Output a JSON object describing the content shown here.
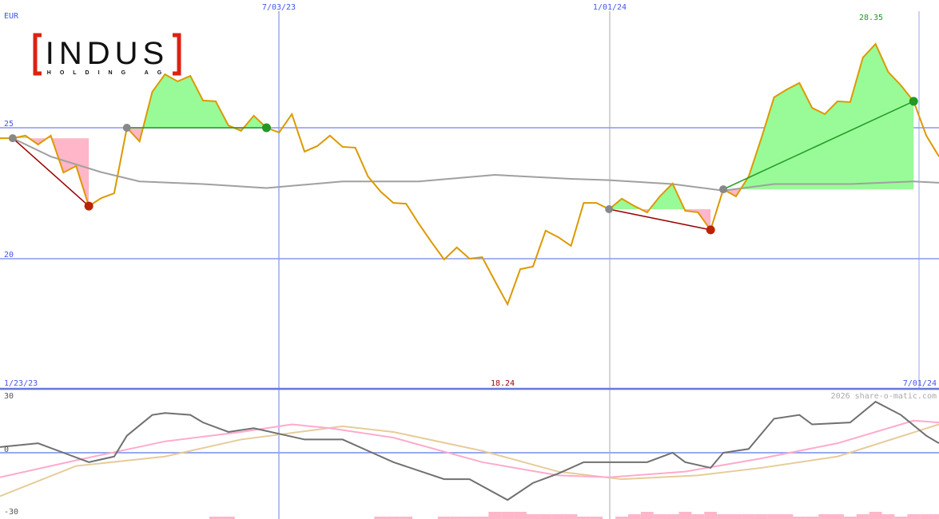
{
  "chart_data": [
    {
      "type": "line",
      "currency_label": "EUR",
      "x_tick_labels_top": [
        "7/03/23",
        "1/01/24"
      ],
      "x_tick_labels_bottom": [
        "1/23/23",
        "7/01/24"
      ],
      "y_ticks": [
        25,
        20
      ],
      "ylim": [
        16.2,
        29.9
      ],
      "max_label": "28.35",
      "min_label": "18.24",
      "grid": true,
      "frequency": "weekly",
      "values": [
        24.6,
        24.6,
        24.7,
        24.36,
        24.7,
        23.29,
        23.54,
        22.01,
        22.32,
        22.5,
        25.0,
        24.48,
        26.37,
        27.04,
        26.77,
        26.98,
        26.04,
        26.01,
        25.09,
        24.88,
        25.46,
        25.0,
        24.82,
        25.52,
        24.09,
        24.3,
        24.7,
        24.27,
        24.24,
        23.14,
        22.56,
        22.13,
        22.1,
        21.34,
        20.64,
        19.97,
        20.43,
        20.0,
        20.06,
        19.15,
        18.26,
        19.6,
        19.7,
        21.07,
        20.82,
        20.49,
        22.13,
        22.13,
        21.89,
        22.29,
        22.01,
        21.77,
        22.38,
        22.87,
        21.83,
        21.77,
        21.1,
        22.65,
        22.38,
        23.14,
        24.6,
        26.16,
        26.46,
        26.71,
        25.76,
        25.52,
        26.01,
        25.98,
        27.68,
        28.2,
        27.13,
        26.62,
        26.01,
        24.7,
        23.9
      ],
      "moving_average": [
        [
          1,
          24.6
        ],
        [
          4,
          23.9
        ],
        [
          8,
          23.3
        ],
        [
          11,
          22.95
        ],
        [
          16,
          22.85
        ],
        [
          21,
          22.7
        ],
        [
          27,
          22.95
        ],
        [
          33,
          22.95
        ],
        [
          39,
          23.2
        ],
        [
          45,
          23.05
        ],
        [
          48,
          23.0
        ],
        [
          53,
          22.85
        ],
        [
          57,
          22.6
        ],
        [
          61,
          22.85
        ],
        [
          67,
          22.85
        ],
        [
          72,
          22.95
        ],
        [
          74,
          22.9
        ]
      ],
      "signals": [
        {
          "entry": 1,
          "exit": 7,
          "result": "loss"
        },
        {
          "entry": 10,
          "exit": 21,
          "result": "gain"
        },
        {
          "entry": 48,
          "exit": 56,
          "result": "loss"
        },
        {
          "entry": 57,
          "exit": 72,
          "result": "gain"
        }
      ],
      "colors": {
        "price": "#dd9900",
        "ma": "#a0a0a0",
        "gain": "#98fb98",
        "loss": "#ffb6c8",
        "gain_line": "#229922",
        "loss_line": "#990000",
        "grid": "#99aaee",
        "neutral_marker": "#888888"
      }
    },
    {
      "type": "line",
      "y_ticks": [
        30,
        0,
        -30
      ],
      "ylim": [
        -30,
        30
      ],
      "copyright": "2026 share-o-matic.com",
      "series": [
        {
          "color": "#707070",
          "points": [
            [
              0,
              3
            ],
            [
              3,
              5
            ],
            [
              5,
              0
            ],
            [
              7,
              -5
            ],
            [
              9,
              -2
            ],
            [
              10,
              9
            ],
            [
              12,
              20
            ],
            [
              13,
              21
            ],
            [
              15,
              20
            ],
            [
              16,
              16
            ],
            [
              18,
              11
            ],
            [
              20,
              13
            ],
            [
              22,
              10
            ],
            [
              24,
              7
            ],
            [
              27,
              7
            ],
            [
              29,
              1
            ],
            [
              31,
              -5
            ],
            [
              35,
              -14
            ],
            [
              37,
              -14
            ],
            [
              40,
              -25
            ],
            [
              42,
              -16
            ],
            [
              44,
              -11
            ],
            [
              46,
              -5
            ],
            [
              48,
              -5
            ],
            [
              51,
              -5
            ],
            [
              53,
              0
            ],
            [
              54,
              -5
            ],
            [
              56,
              -8
            ],
            [
              57,
              0
            ],
            [
              59,
              2
            ],
            [
              61,
              18
            ],
            [
              63,
              20
            ],
            [
              64,
              15
            ],
            [
              67,
              16
            ],
            [
              69,
              27
            ],
            [
              71,
              20
            ],
            [
              73,
              9
            ],
            [
              74,
              5
            ]
          ]
        },
        {
          "color": "#ffaacc",
          "points": [
            [
              0,
              -13
            ],
            [
              6,
              -4
            ],
            [
              13,
              6
            ],
            [
              19,
              11
            ],
            [
              23,
              15
            ],
            [
              26,
              13
            ],
            [
              31,
              8
            ],
            [
              38,
              -5
            ],
            [
              44,
              -12
            ],
            [
              48,
              -13
            ],
            [
              54,
              -10
            ],
            [
              60,
              -3
            ],
            [
              66,
              5
            ],
            [
              72,
              17
            ],
            [
              74,
              16
            ]
          ]
        },
        {
          "color": "#e6cc99",
          "points": [
            [
              0,
              -23
            ],
            [
              6,
              -7
            ],
            [
              13,
              -2
            ],
            [
              19,
              7
            ],
            [
              27,
              14
            ],
            [
              31,
              11
            ],
            [
              38,
              1
            ],
            [
              44,
              -10
            ],
            [
              49,
              -14
            ],
            [
              55,
              -12
            ],
            [
              60,
              -8
            ],
            [
              66,
              -2
            ],
            [
              74,
              15
            ]
          ]
        }
      ],
      "bars": [
        0,
        0,
        0,
        0,
        0,
        0,
        0,
        0,
        0,
        0,
        0,
        0,
        0,
        0,
        0,
        0,
        0,
        1,
        1,
        0,
        0,
        0,
        0,
        0,
        0,
        0,
        0,
        0,
        0,
        0,
        1,
        1,
        1,
        0,
        0,
        1,
        1,
        1,
        1,
        3,
        3,
        3,
        2,
        2,
        2,
        2,
        1,
        1,
        0,
        1,
        2,
        3,
        2,
        2,
        3,
        2,
        3,
        2,
        2,
        2,
        2,
        2,
        2,
        1,
        1,
        2,
        2,
        1,
        2,
        3,
        2,
        1,
        2,
        2,
        2
      ],
      "bar_color": "#ffb6c8"
    }
  ],
  "logo": {
    "name": "INDUS",
    "tagline": "HOLDING AG"
  }
}
